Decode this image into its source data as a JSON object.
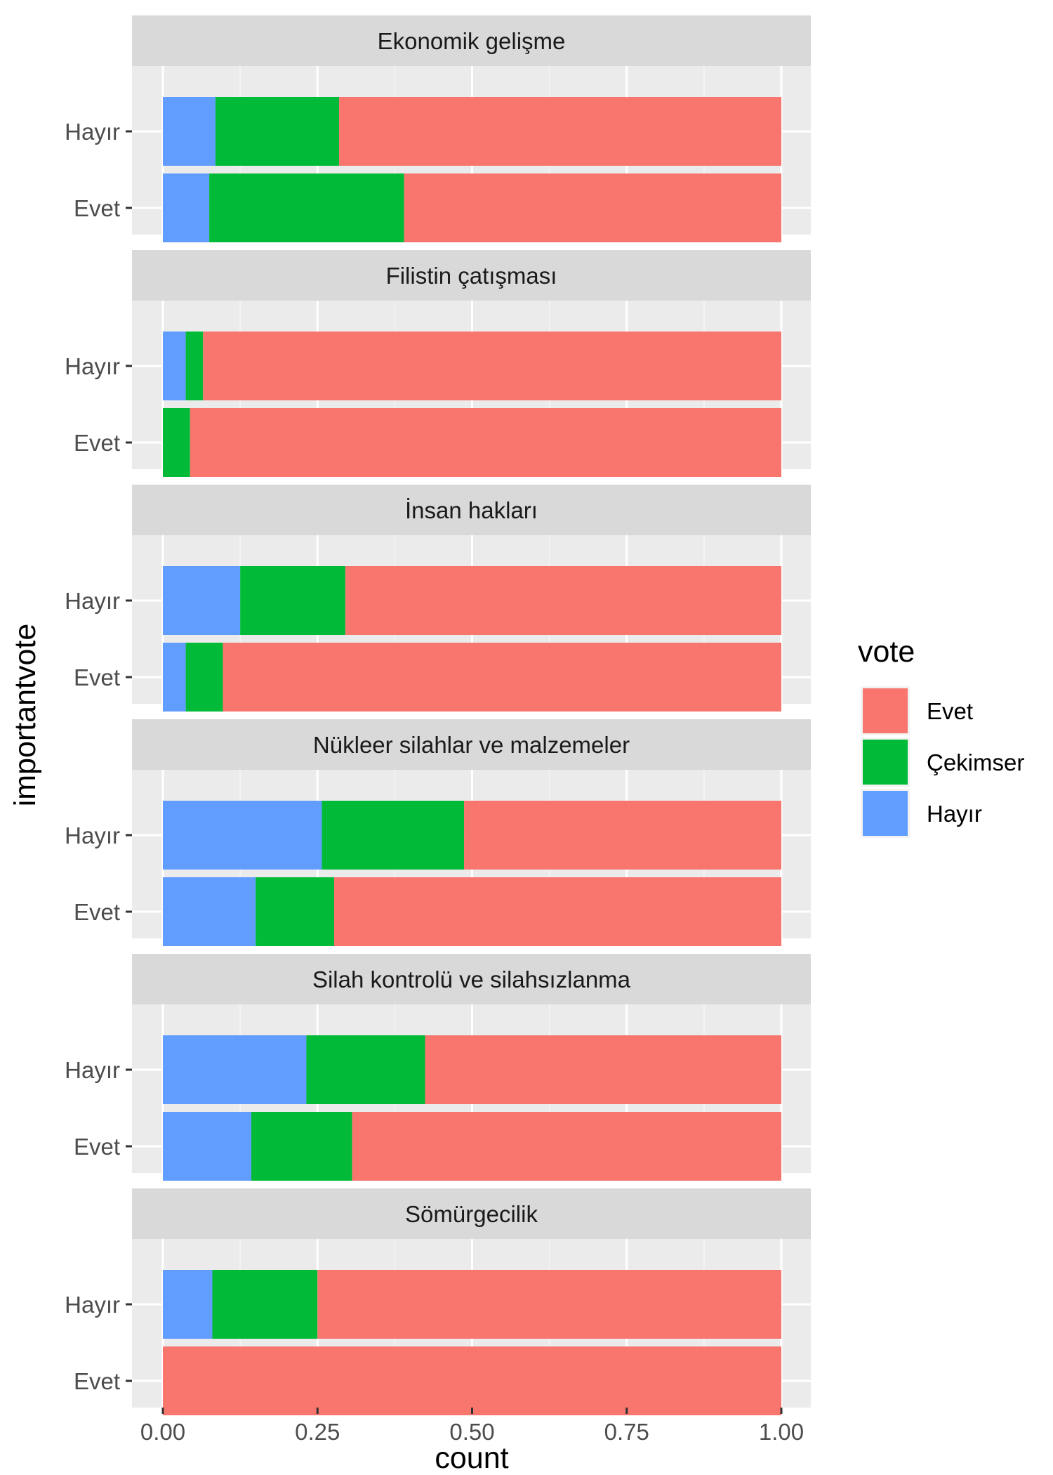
{
  "chart_data": {
    "type": "bar",
    "orientation": "horizontal",
    "stacked": "fill",
    "xlabel": "count",
    "ylabel": "importantvote",
    "xlim": [
      0,
      1
    ],
    "x_ticks": [
      0,
      0.25,
      0.5,
      0.75,
      1
    ],
    "x_tick_labels": [
      "0.00",
      "0.25",
      "0.50",
      "0.75",
      "1.00"
    ],
    "categories": [
      "Hayır",
      "Evet"
    ],
    "legend": {
      "title": "vote",
      "position": "right",
      "entries": [
        {
          "label": "Evet",
          "color": "#F8766D"
        },
        {
          "label": "Çekimser",
          "color": "#00BA38"
        },
        {
          "label": "Hayır",
          "color": "#619CFF"
        }
      ]
    },
    "series_order": [
      "Hayır",
      "Çekimser",
      "Evet"
    ],
    "colors": {
      "Hayır": "#619CFF",
      "Çekimser": "#00BA38",
      "Evet": "#F8766D"
    },
    "grid": true,
    "facets": [
      {
        "title": "Ekonomik gelişme",
        "rows": [
          {
            "category": "Hayır",
            "Hayır": 0.085,
            "Çekimser": 0.2,
            "Evet": 0.715
          },
          {
            "category": "Evet",
            "Hayır": 0.075,
            "Çekimser": 0.315,
            "Evet": 0.61
          }
        ]
      },
      {
        "title": "Filistin çatışması",
        "rows": [
          {
            "category": "Hayır",
            "Hayır": 0.037,
            "Çekimser": 0.028,
            "Evet": 0.935
          },
          {
            "category": "Evet",
            "Hayır": 0.0,
            "Çekimser": 0.044,
            "Evet": 0.956
          }
        ]
      },
      {
        "title": "İnsan hakları",
        "rows": [
          {
            "category": "Hayır",
            "Hayır": 0.125,
            "Çekimser": 0.17,
            "Evet": 0.705
          },
          {
            "category": "Evet",
            "Hayır": 0.037,
            "Çekimser": 0.06,
            "Evet": 0.903
          }
        ]
      },
      {
        "title": "Nükleer silahlar ve malzemeler",
        "rows": [
          {
            "category": "Hayır",
            "Hayır": 0.257,
            "Çekimser": 0.23,
            "Evet": 0.513
          },
          {
            "category": "Evet",
            "Hayır": 0.15,
            "Çekimser": 0.127,
            "Evet": 0.723
          }
        ]
      },
      {
        "title": "Silah kontrolü ve silahsızlanma",
        "rows": [
          {
            "category": "Hayır",
            "Hayır": 0.232,
            "Çekimser": 0.192,
            "Evet": 0.576
          },
          {
            "category": "Evet",
            "Hayır": 0.143,
            "Çekimser": 0.163,
            "Evet": 0.694
          }
        ]
      },
      {
        "title": "Sömürgecilik",
        "rows": [
          {
            "category": "Hayır",
            "Hayır": 0.08,
            "Çekimser": 0.17,
            "Evet": 0.75
          },
          {
            "category": "Evet",
            "Hayır": 0.0,
            "Çekimser": 0.0,
            "Evet": 1.0
          }
        ]
      }
    ]
  }
}
